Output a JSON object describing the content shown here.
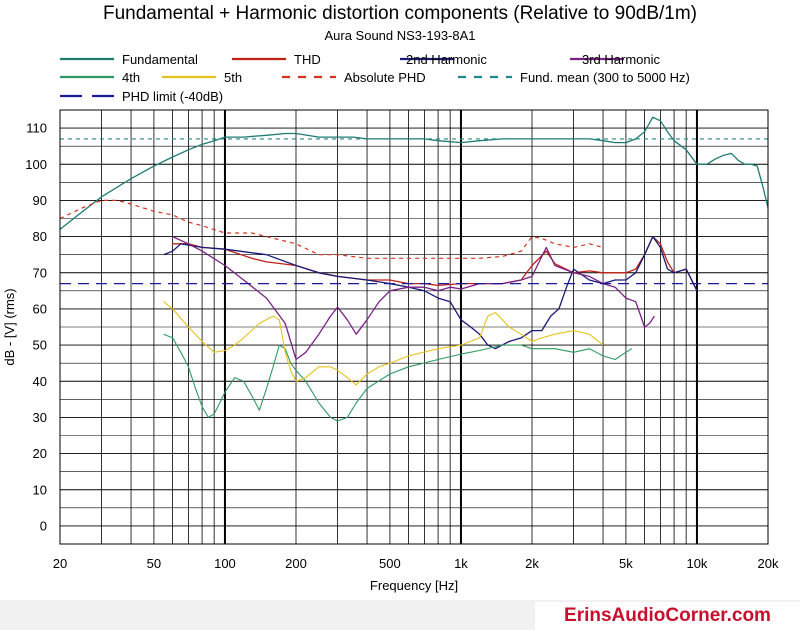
{
  "chart_data": {
    "type": "line",
    "title": "Fundamental + Harmonic distortion components (Relative to 90dB/1m)",
    "subtitle": "Aura Sound NS3-193-8A1",
    "xlabel": "Frequency [Hz]",
    "ylabel": "dB - [V]  (rms)",
    "xscale": "log",
    "xlim": [
      20,
      20000
    ],
    "ylim": [
      -5,
      115
    ],
    "grid": true,
    "x_ticks": [
      {
        "value": 20,
        "label": "20"
      },
      {
        "value": 50,
        "label": "50"
      },
      {
        "value": 100,
        "label": "100"
      },
      {
        "value": 200,
        "label": "200"
      },
      {
        "value": 500,
        "label": "500"
      },
      {
        "value": 1000,
        "label": "1k"
      },
      {
        "value": 2000,
        "label": "2k"
      },
      {
        "value": 5000,
        "label": "5k"
      },
      {
        "value": 10000,
        "label": "10k"
      },
      {
        "value": 20000,
        "label": "20k"
      }
    ],
    "y_ticks": [
      {
        "value": 0,
        "label": "0"
      },
      {
        "value": 10,
        "label": "10"
      },
      {
        "value": 20,
        "label": "20"
      },
      {
        "value": 30,
        "label": "30"
      },
      {
        "value": 40,
        "label": "40"
      },
      {
        "value": 50,
        "label": "50"
      },
      {
        "value": 60,
        "label": "60"
      },
      {
        "value": 70,
        "label": "70"
      },
      {
        "value": 80,
        "label": "80"
      },
      {
        "value": 90,
        "label": "90"
      },
      {
        "value": 100,
        "label": "100"
      },
      {
        "value": 110,
        "label": "110"
      }
    ],
    "series": [
      {
        "name": "Fundamental",
        "color": "#1e7b72",
        "dash": "solid",
        "width": 1.3,
        "points": [
          [
            20,
            82
          ],
          [
            25,
            87
          ],
          [
            30,
            91
          ],
          [
            40,
            96
          ],
          [
            50,
            99.5
          ],
          [
            60,
            102
          ],
          [
            70,
            104
          ],
          [
            80,
            105.5
          ],
          [
            90,
            106.5
          ],
          [
            100,
            107.5
          ],
          [
            120,
            107.5
          ],
          [
            150,
            108
          ],
          [
            180,
            108.5
          ],
          [
            200,
            108.5
          ],
          [
            250,
            107.5
          ],
          [
            300,
            107.5
          ],
          [
            350,
            107.5
          ],
          [
            400,
            107
          ],
          [
            500,
            107
          ],
          [
            600,
            107
          ],
          [
            700,
            107
          ],
          [
            800,
            106.5
          ],
          [
            1000,
            106
          ],
          [
            1200,
            106.5
          ],
          [
            1500,
            107
          ],
          [
            2000,
            107
          ],
          [
            2500,
            107
          ],
          [
            3000,
            107
          ],
          [
            3500,
            107
          ],
          [
            4000,
            106.5
          ],
          [
            4500,
            106
          ],
          [
            5000,
            106
          ],
          [
            5500,
            107
          ],
          [
            6000,
            109
          ],
          [
            6500,
            113
          ],
          [
            7000,
            112
          ],
          [
            7500,
            109
          ],
          [
            8000,
            106.5
          ],
          [
            9000,
            104
          ],
          [
            10000,
            100
          ],
          [
            11000,
            100
          ],
          [
            12000,
            101.5
          ],
          [
            13000,
            102.5
          ],
          [
            14000,
            103
          ],
          [
            15000,
            101
          ],
          [
            16000,
            100
          ],
          [
            17000,
            100
          ],
          [
            18000,
            99.5
          ],
          [
            19000,
            94
          ],
          [
            20000,
            88
          ]
        ]
      },
      {
        "name": "THD",
        "color": "#c0201a",
        "dash": "solid",
        "width": 1.3,
        "points": [
          [
            60,
            78
          ],
          [
            70,
            78
          ],
          [
            80,
            77
          ],
          [
            100,
            76.5
          ],
          [
            130,
            74
          ],
          [
            150,
            73
          ],
          [
            200,
            72
          ],
          [
            250,
            70
          ],
          [
            300,
            69
          ],
          [
            400,
            68
          ],
          [
            500,
            68
          ],
          [
            600,
            67
          ],
          [
            700,
            67
          ],
          [
            800,
            66.5
          ],
          [
            1000,
            67
          ],
          [
            1200,
            67
          ],
          [
            1500,
            67
          ],
          [
            1800,
            68
          ],
          [
            2000,
            72
          ],
          [
            2300,
            76
          ],
          [
            2500,
            72.5
          ],
          [
            3000,
            70
          ],
          [
            3500,
            70.5
          ],
          [
            4000,
            70
          ],
          [
            5000,
            70
          ],
          [
            5500,
            71
          ],
          [
            6000,
            75
          ],
          [
            6500,
            80
          ],
          [
            7000,
            78
          ],
          [
            7500,
            73
          ],
          [
            8000,
            70
          ],
          [
            9000,
            71
          ],
          [
            10000,
            65
          ]
        ]
      },
      {
        "name": "2nd Harmonic",
        "color": "#1a1a78",
        "dash": "solid",
        "width": 1.3,
        "points": [
          [
            55,
            75
          ],
          [
            60,
            76
          ],
          [
            65,
            78
          ],
          [
            80,
            77
          ],
          [
            100,
            76.5
          ],
          [
            150,
            75
          ],
          [
            200,
            72
          ],
          [
            250,
            70
          ],
          [
            300,
            69
          ],
          [
            400,
            68
          ],
          [
            500,
            67
          ],
          [
            600,
            66
          ],
          [
            700,
            65
          ],
          [
            800,
            63
          ],
          [
            900,
            62
          ],
          [
            1000,
            57
          ],
          [
            1100,
            55
          ],
          [
            1200,
            53
          ],
          [
            1300,
            50
          ],
          [
            1400,
            49
          ],
          [
            1600,
            51
          ],
          [
            1800,
            52
          ],
          [
            2000,
            54
          ],
          [
            2200,
            54
          ],
          [
            2400,
            58
          ],
          [
            2600,
            60
          ],
          [
            2800,
            66
          ],
          [
            3000,
            71
          ],
          [
            3500,
            68
          ],
          [
            4000,
            67
          ],
          [
            4500,
            68
          ],
          [
            5000,
            68
          ],
          [
            5500,
            70
          ],
          [
            6000,
            75
          ],
          [
            6500,
            80
          ],
          [
            7000,
            77
          ],
          [
            7500,
            71
          ],
          [
            8000,
            70
          ],
          [
            9000,
            71
          ],
          [
            10000,
            65
          ]
        ]
      },
      {
        "name": "3rd Harmonic",
        "color": "#7a2185",
        "dash": "solid",
        "width": 1.3,
        "points": [
          [
            60,
            80
          ],
          [
            70,
            78
          ],
          [
            80,
            76
          ],
          [
            100,
            72
          ],
          [
            120,
            68
          ],
          [
            150,
            63
          ],
          [
            180,
            56
          ],
          [
            190,
            51
          ],
          [
            200,
            46
          ],
          [
            220,
            48
          ],
          [
            250,
            53
          ],
          [
            280,
            58
          ],
          [
            300,
            60.5
          ],
          [
            330,
            57
          ],
          [
            360,
            53
          ],
          [
            400,
            57
          ],
          [
            450,
            62
          ],
          [
            500,
            65
          ],
          [
            600,
            66
          ],
          [
            700,
            66
          ],
          [
            800,
            65
          ],
          [
            900,
            66
          ],
          [
            1000,
            65.5
          ],
          [
            1200,
            67
          ],
          [
            1500,
            67
          ],
          [
            1800,
            68
          ],
          [
            2000,
            69
          ],
          [
            2300,
            77
          ],
          [
            2500,
            72
          ],
          [
            3000,
            70
          ],
          [
            3500,
            69
          ],
          [
            4000,
            67
          ],
          [
            4500,
            66
          ],
          [
            5000,
            63
          ],
          [
            5500,
            62
          ],
          [
            6000,
            55
          ],
          [
            6300,
            56
          ],
          [
            6600,
            58
          ]
        ]
      },
      {
        "name": "4th",
        "color": "#2e9a62",
        "dash": "solid",
        "width": 1.1,
        "points": [
          [
            55,
            53
          ],
          [
            60,
            52
          ],
          [
            65,
            48
          ],
          [
            70,
            44
          ],
          [
            75,
            38
          ],
          [
            80,
            33
          ],
          [
            85,
            30
          ],
          [
            90,
            31
          ],
          [
            95,
            34
          ],
          [
            100,
            37
          ],
          [
            110,
            41
          ],
          [
            120,
            40
          ],
          [
            130,
            36
          ],
          [
            140,
            32
          ],
          [
            150,
            38
          ],
          [
            160,
            44
          ],
          [
            170,
            50
          ],
          [
            180,
            49
          ],
          [
            190,
            45
          ],
          [
            200,
            43
          ],
          [
            220,
            40
          ],
          [
            250,
            34
          ],
          [
            280,
            30
          ],
          [
            300,
            29
          ],
          [
            330,
            30
          ],
          [
            360,
            34
          ],
          [
            400,
            38
          ],
          [
            500,
            42
          ],
          [
            600,
            44
          ],
          [
            800,
            46
          ],
          [
            1000,
            47.5
          ],
          [
            1200,
            48.5
          ],
          [
            1500,
            50
          ],
          [
            1800,
            50
          ],
          [
            2000,
            49
          ],
          [
            2500,
            49
          ],
          [
            3000,
            48
          ],
          [
            3500,
            49
          ],
          [
            4000,
            47
          ],
          [
            4500,
            46
          ],
          [
            5000,
            48
          ],
          [
            5300,
            49
          ]
        ]
      },
      {
        "name": "5th",
        "color": "#e8c21a",
        "dash": "solid",
        "width": 1.1,
        "points": [
          [
            55,
            62
          ],
          [
            60,
            60
          ],
          [
            70,
            55
          ],
          [
            80,
            51
          ],
          [
            90,
            48
          ],
          [
            100,
            48.5
          ],
          [
            110,
            50
          ],
          [
            120,
            52
          ],
          [
            140,
            56
          ],
          [
            160,
            58
          ],
          [
            170,
            57
          ],
          [
            180,
            48
          ],
          [
            190,
            43
          ],
          [
            200,
            40
          ],
          [
            220,
            41
          ],
          [
            250,
            44
          ],
          [
            280,
            44
          ],
          [
            300,
            43
          ],
          [
            330,
            41
          ],
          [
            360,
            39
          ],
          [
            400,
            42
          ],
          [
            450,
            44
          ],
          [
            500,
            45
          ],
          [
            600,
            47
          ],
          [
            800,
            49
          ],
          [
            1000,
            50
          ],
          [
            1200,
            52
          ],
          [
            1300,
            58
          ],
          [
            1400,
            59
          ],
          [
            1500,
            57
          ],
          [
            1600,
            55
          ],
          [
            1800,
            53
          ],
          [
            2000,
            51
          ],
          [
            2200,
            52
          ],
          [
            2500,
            53
          ],
          [
            3000,
            54
          ],
          [
            3500,
            53
          ],
          [
            4000,
            50
          ]
        ]
      },
      {
        "name": "Absolute PHD",
        "color": "#d6301f",
        "dash": "dashed",
        "width": 1.2,
        "points": [
          [
            20,
            85
          ],
          [
            25,
            88
          ],
          [
            30,
            90
          ],
          [
            35,
            90
          ],
          [
            40,
            89
          ],
          [
            50,
            87
          ],
          [
            60,
            86
          ],
          [
            70,
            84
          ],
          [
            80,
            83
          ],
          [
            100,
            81
          ],
          [
            130,
            81
          ],
          [
            150,
            80
          ],
          [
            200,
            78
          ],
          [
            250,
            75
          ],
          [
            300,
            75
          ],
          [
            400,
            74
          ],
          [
            500,
            74
          ],
          [
            600,
            74
          ],
          [
            700,
            74
          ],
          [
            800,
            74
          ],
          [
            1000,
            74
          ],
          [
            1200,
            74
          ],
          [
            1500,
            74.5
          ],
          [
            1800,
            76
          ],
          [
            2000,
            80
          ],
          [
            2200,
            79.5
          ],
          [
            2500,
            78
          ],
          [
            3000,
            77
          ],
          [
            3500,
            78
          ],
          [
            4000,
            77
          ]
        ]
      },
      {
        "name": "Fund. mean (300 to 5000 Hz)",
        "color": "#1e8a8a",
        "dash": "dashed",
        "width": 1.1,
        "points": [
          [
            20,
            107
          ],
          [
            20000,
            107
          ]
        ]
      },
      {
        "name": "PHD limit (-40dB)",
        "color": "#1a1a9a",
        "dash": "dashed",
        "width": 1.3,
        "points": [
          [
            20,
            67
          ],
          [
            20000,
            67
          ]
        ]
      }
    ]
  },
  "footer": {
    "brand": "ErinsAudioCorner.com"
  }
}
